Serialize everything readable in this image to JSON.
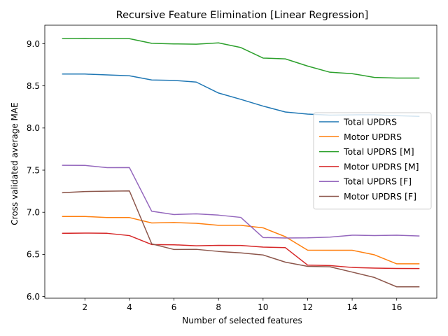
{
  "chart_data": {
    "type": "line",
    "title": "Recursive Feature Elimination [Linear Regression]",
    "xlabel": "Number of selected features",
    "ylabel": "Cross validated average MAE",
    "xlim": [
      0.2,
      17.8
    ],
    "ylim": [
      5.98,
      9.22
    ],
    "xticks": [
      2,
      4,
      6,
      8,
      10,
      12,
      14,
      16
    ],
    "yticks": [
      6.0,
      6.5,
      7.0,
      7.5,
      8.0,
      8.5,
      9.0
    ],
    "ytick_labels": [
      "6.0",
      "6.5",
      "7.0",
      "7.5",
      "8.0",
      "8.5",
      "9.0"
    ],
    "grid": false,
    "legend_position": "center-right",
    "x": [
      1,
      2,
      3,
      4,
      5,
      6,
      7,
      8,
      9,
      10,
      11,
      12,
      13,
      14,
      15,
      16,
      17
    ],
    "series": [
      {
        "name": "Total UPDRS",
        "color": "#1f77b4",
        "values": [
          8.64,
          8.64,
          8.63,
          8.62,
          8.57,
          8.565,
          8.545,
          8.415,
          8.34,
          8.26,
          8.19,
          8.165,
          8.153,
          8.156,
          8.157,
          8.146,
          8.138
        ]
      },
      {
        "name": "Motor UPDRS",
        "color": "#ff7f0e",
        "values": [
          6.95,
          6.95,
          6.937,
          6.937,
          6.873,
          6.878,
          6.869,
          6.845,
          6.845,
          6.815,
          6.71,
          6.55,
          6.549,
          6.549,
          6.495,
          6.388,
          6.388
        ]
      },
      {
        "name": "Total UPDRS [M]",
        "color": "#2ca02c",
        "values": [
          9.06,
          9.063,
          9.06,
          9.06,
          9.005,
          8.998,
          8.995,
          9.01,
          8.955,
          8.83,
          8.82,
          8.735,
          8.662,
          8.645,
          8.6,
          8.593,
          8.593
        ]
      },
      {
        "name": "Motor UPDRS [M]",
        "color": "#d62728",
        "values": [
          6.75,
          6.753,
          6.75,
          6.723,
          6.617,
          6.614,
          6.602,
          6.607,
          6.606,
          6.587,
          6.58,
          6.373,
          6.367,
          6.345,
          6.337,
          6.333,
          6.332
        ]
      },
      {
        "name": "Total UPDRS [F]",
        "color": "#9467bd",
        "values": [
          7.557,
          7.556,
          7.529,
          7.53,
          7.012,
          6.973,
          6.981,
          6.966,
          6.939,
          6.7,
          6.695,
          6.697,
          6.705,
          6.728,
          6.724,
          6.728,
          6.719
        ]
      },
      {
        "name": "Motor UPDRS [F]",
        "color": "#8c564b",
        "values": [
          7.232,
          7.246,
          7.25,
          7.253,
          6.625,
          6.558,
          6.56,
          6.535,
          6.518,
          6.493,
          6.408,
          6.358,
          6.353,
          6.29,
          6.226,
          6.115,
          6.115
        ]
      }
    ]
  }
}
